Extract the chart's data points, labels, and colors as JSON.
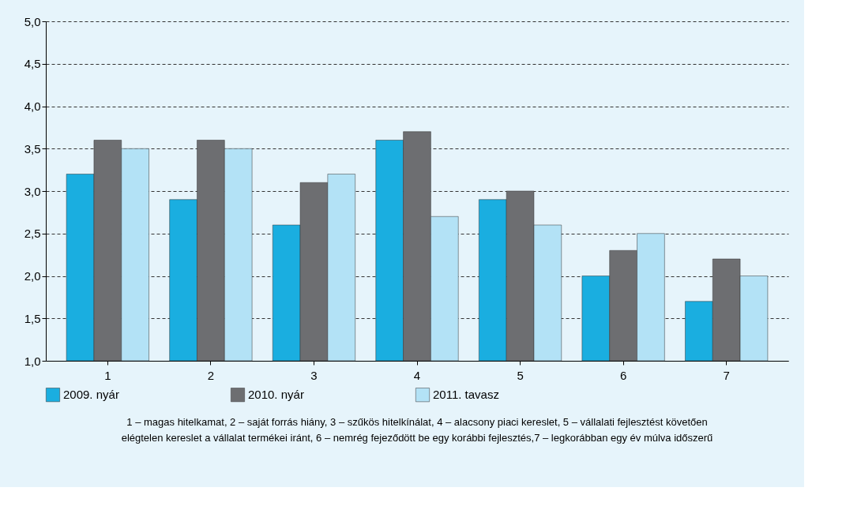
{
  "chart_data": {
    "type": "bar",
    "categories": [
      "1",
      "2",
      "3",
      "4",
      "5",
      "6",
      "7"
    ],
    "series": [
      {
        "name": "2009. nyár",
        "color": "#1aaee0",
        "values": [
          3.2,
          2.9,
          2.6,
          3.6,
          2.9,
          2.0,
          1.7
        ]
      },
      {
        "name": "2010. nyár",
        "color": "#6d6e71",
        "values": [
          3.6,
          3.6,
          3.1,
          3.7,
          3.0,
          2.3,
          2.2
        ]
      },
      {
        "name": "2011. tavasz",
        "color": "#b3e2f6",
        "values": [
          3.5,
          3.5,
          3.2,
          2.7,
          2.6,
          2.5,
          2.0
        ]
      }
    ],
    "ylim": [
      1.0,
      5.0
    ],
    "yticks": [
      {
        "value": 1.0,
        "label": "1,0"
      },
      {
        "value": 1.5,
        "label": "1,5"
      },
      {
        "value": 2.0,
        "label": "2,0"
      },
      {
        "value": 2.5,
        "label": "2,5"
      },
      {
        "value": 3.0,
        "label": "3,0"
      },
      {
        "value": 3.5,
        "label": "3,5"
      },
      {
        "value": 4.0,
        "label": "4,0"
      },
      {
        "value": 4.5,
        "label": "4,5"
      },
      {
        "value": 5.0,
        "label": "5,0"
      }
    ],
    "grid": "y",
    "legend": "bottom",
    "annotations": [
      "1 – magas hitelkamat, 2 – saját forrás hiány, 3 – szűkös hitelkínálat, 4 – alacsony piaci kereslet, 5 – vállalati fejlesztést követően",
      "elégtelen kereslet a vállalat termékei iránt, 6 – nemrég fejeződött be egy korábbi fejlesztés,7 – legkorábban egy év múlva időszerű"
    ]
  }
}
